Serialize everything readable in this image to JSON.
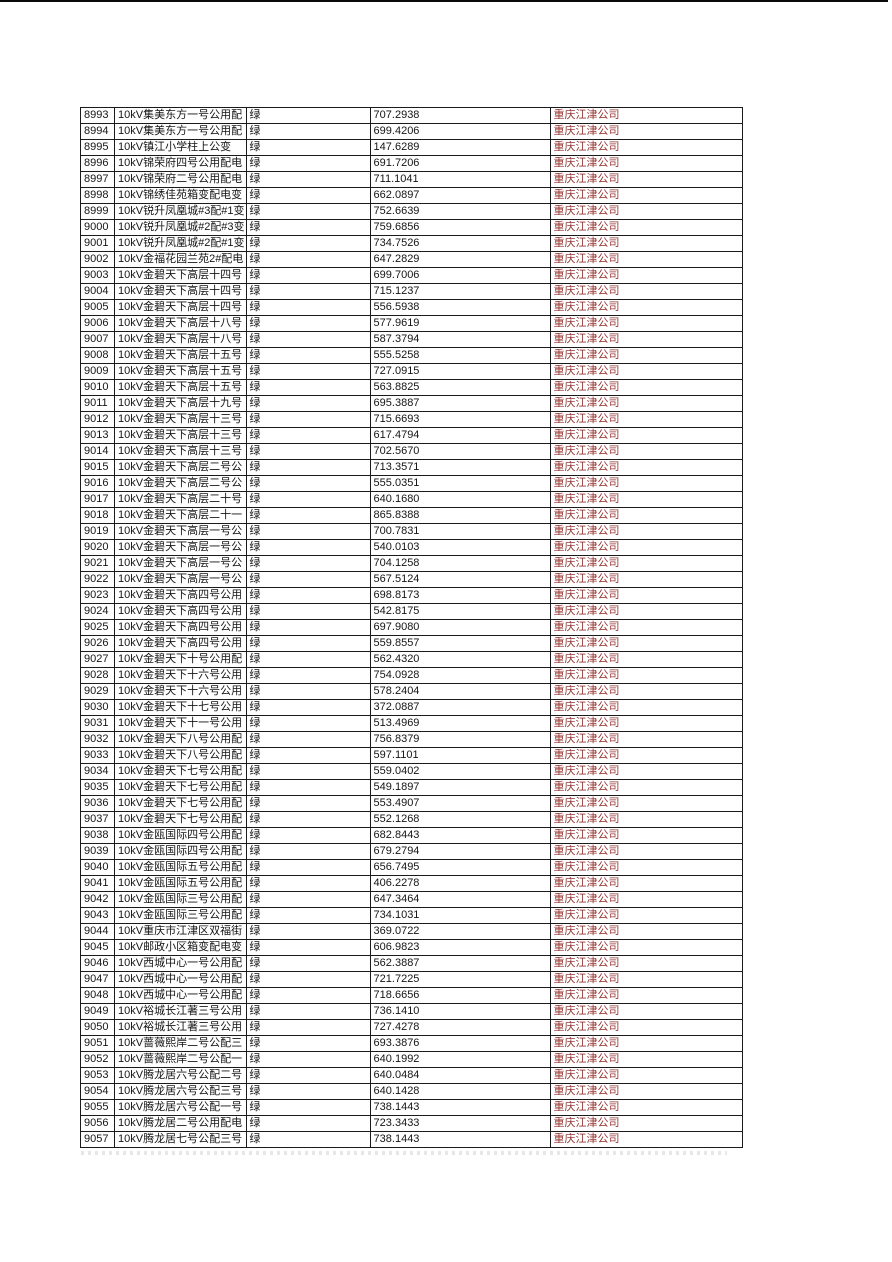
{
  "colors": {
    "company_text": "#963634",
    "default_text": "#151515",
    "grid_line": "#1a1a1a"
  },
  "table": {
    "columns": [
      "id",
      "name",
      "status",
      "value",
      "company"
    ],
    "rows": [
      {
        "id": "8993",
        "name": "10kV集美东方一号公用配",
        "status": "绿",
        "value": "707.2938",
        "company": "重庆江津公司"
      },
      {
        "id": "8994",
        "name": "10kV集美东方一号公用配",
        "status": "绿",
        "value": "699.4206",
        "company": "重庆江津公司"
      },
      {
        "id": "8995",
        "name": "10kV镇江小学柱上公变",
        "status": "绿",
        "value": "147.6289",
        "company": "重庆江津公司"
      },
      {
        "id": "8996",
        "name": "10kV锦荣府四号公用配电",
        "status": "绿",
        "value": "691.7206",
        "company": "重庆江津公司"
      },
      {
        "id": "8997",
        "name": "10kV锦荣府二号公用配电",
        "status": "绿",
        "value": "711.1041",
        "company": "重庆江津公司"
      },
      {
        "id": "8998",
        "name": "10kV锦绣佳苑箱变配电变",
        "status": "绿",
        "value": "662.0897",
        "company": "重庆江津公司"
      },
      {
        "id": "8999",
        "name": "10kV锐升凤凰城#3配#1变",
        "status": "绿",
        "value": "752.6639",
        "company": "重庆江津公司"
      },
      {
        "id": "9000",
        "name": "10kV锐升凤凰城#2配#3变",
        "status": "绿",
        "value": "759.6856",
        "company": "重庆江津公司"
      },
      {
        "id": "9001",
        "name": "10kV锐升凤凰城#2配#1变",
        "status": "绿",
        "value": "734.7526",
        "company": "重庆江津公司"
      },
      {
        "id": "9002",
        "name": "10kV金福花园兰苑2#配电",
        "status": "绿",
        "value": "647.2829",
        "company": "重庆江津公司"
      },
      {
        "id": "9003",
        "name": "10kV金碧天下高层十四号",
        "status": "绿",
        "value": "699.7006",
        "company": "重庆江津公司"
      },
      {
        "id": "9004",
        "name": "10kV金碧天下高层十四号",
        "status": "绿",
        "value": "715.1237",
        "company": "重庆江津公司"
      },
      {
        "id": "9005",
        "name": "10kV金碧天下高层十四号",
        "status": "绿",
        "value": "556.5938",
        "company": "重庆江津公司"
      },
      {
        "id": "9006",
        "name": "10kV金碧天下高层十八号",
        "status": "绿",
        "value": "577.9619",
        "company": "重庆江津公司"
      },
      {
        "id": "9007",
        "name": "10kV金碧天下高层十八号",
        "status": "绿",
        "value": "587.3794",
        "company": "重庆江津公司"
      },
      {
        "id": "9008",
        "name": "10kV金碧天下高层十五号",
        "status": "绿",
        "value": "555.5258",
        "company": "重庆江津公司"
      },
      {
        "id": "9009",
        "name": "10kV金碧天下高层十五号",
        "status": "绿",
        "value": "727.0915",
        "company": "重庆江津公司"
      },
      {
        "id": "9010",
        "name": "10kV金碧天下高层十五号",
        "status": "绿",
        "value": "563.8825",
        "company": "重庆江津公司"
      },
      {
        "id": "9011",
        "name": "10kV金碧天下高层十九号",
        "status": "绿",
        "value": "695.3887",
        "company": "重庆江津公司"
      },
      {
        "id": "9012",
        "name": "10kV金碧天下高层十三号",
        "status": "绿",
        "value": "715.6693",
        "company": "重庆江津公司"
      },
      {
        "id": "9013",
        "name": "10kV金碧天下高层十三号",
        "status": "绿",
        "value": "617.4794",
        "company": "重庆江津公司"
      },
      {
        "id": "9014",
        "name": "10kV金碧天下高层十三号",
        "status": "绿",
        "value": "702.5670",
        "company": "重庆江津公司"
      },
      {
        "id": "9015",
        "name": "10kV金碧天下高层二号公",
        "status": "绿",
        "value": "713.3571",
        "company": "重庆江津公司"
      },
      {
        "id": "9016",
        "name": "10kV金碧天下高层二号公",
        "status": "绿",
        "value": "555.0351",
        "company": "重庆江津公司"
      },
      {
        "id": "9017",
        "name": "10kV金碧天下高层二十号",
        "status": "绿",
        "value": "640.1680",
        "company": "重庆江津公司"
      },
      {
        "id": "9018",
        "name": "10kV金碧天下高层二十一",
        "status": "绿",
        "value": "865.8388",
        "company": "重庆江津公司"
      },
      {
        "id": "9019",
        "name": "10kV金碧天下高层一号公",
        "status": "绿",
        "value": "700.7831",
        "company": "重庆江津公司"
      },
      {
        "id": "9020",
        "name": "10kV金碧天下高层一号公",
        "status": "绿",
        "value": "540.0103",
        "company": "重庆江津公司"
      },
      {
        "id": "9021",
        "name": "10kV金碧天下高层一号公",
        "status": "绿",
        "value": "704.1258",
        "company": "重庆江津公司"
      },
      {
        "id": "9022",
        "name": "10kV金碧天下高层一号公",
        "status": "绿",
        "value": "567.5124",
        "company": "重庆江津公司"
      },
      {
        "id": "9023",
        "name": "10kV金碧天下高四号公用",
        "status": "绿",
        "value": "698.8173",
        "company": "重庆江津公司"
      },
      {
        "id": "9024",
        "name": "10kV金碧天下高四号公用",
        "status": "绿",
        "value": "542.8175",
        "company": "重庆江津公司"
      },
      {
        "id": "9025",
        "name": "10kV金碧天下高四号公用",
        "status": "绿",
        "value": "697.9080",
        "company": "重庆江津公司"
      },
      {
        "id": "9026",
        "name": "10kV金碧天下高四号公用",
        "status": "绿",
        "value": "559.8557",
        "company": "重庆江津公司"
      },
      {
        "id": "9027",
        "name": "10kV金碧天下十号公用配",
        "status": "绿",
        "value": "562.4320",
        "company": "重庆江津公司"
      },
      {
        "id": "9028",
        "name": "10kV金碧天下十六号公用",
        "status": "绿",
        "value": "754.0928",
        "company": "重庆江津公司"
      },
      {
        "id": "9029",
        "name": "10kV金碧天下十六号公用",
        "status": "绿",
        "value": "578.2404",
        "company": "重庆江津公司"
      },
      {
        "id": "9030",
        "name": "10kV金碧天下十七号公用",
        "status": "绿",
        "value": "372.0887",
        "company": "重庆江津公司"
      },
      {
        "id": "9031",
        "name": "10kV金碧天下十一号公用",
        "status": "绿",
        "value": "513.4969",
        "company": "重庆江津公司"
      },
      {
        "id": "9032",
        "name": "10kV金碧天下八号公用配",
        "status": "绿",
        "value": "756.8379",
        "company": "重庆江津公司"
      },
      {
        "id": "9033",
        "name": "10kV金碧天下八号公用配",
        "status": "绿",
        "value": "597.1101",
        "company": "重庆江津公司"
      },
      {
        "id": "9034",
        "name": "10kV金碧天下七号公用配",
        "status": "绿",
        "value": "559.0402",
        "company": "重庆江津公司"
      },
      {
        "id": "9035",
        "name": "10kV金碧天下七号公用配",
        "status": "绿",
        "value": "549.1897",
        "company": "重庆江津公司"
      },
      {
        "id": "9036",
        "name": "10kV金碧天下七号公用配",
        "status": "绿",
        "value": "553.4907",
        "company": "重庆江津公司"
      },
      {
        "id": "9037",
        "name": "10kV金碧天下七号公用配",
        "status": "绿",
        "value": "552.1268",
        "company": "重庆江津公司"
      },
      {
        "id": "9038",
        "name": "10kV金瓯国际四号公用配",
        "status": "绿",
        "value": "682.8443",
        "company": "重庆江津公司"
      },
      {
        "id": "9039",
        "name": "10kV金瓯国际四号公用配",
        "status": "绿",
        "value": "679.2794",
        "company": "重庆江津公司"
      },
      {
        "id": "9040",
        "name": "10kV金瓯国际五号公用配",
        "status": "绿",
        "value": "656.7495",
        "company": "重庆江津公司"
      },
      {
        "id": "9041",
        "name": "10kV金瓯国际五号公用配",
        "status": "绿",
        "value": "406.2278",
        "company": "重庆江津公司"
      },
      {
        "id": "9042",
        "name": "10kV金瓯国际三号公用配",
        "status": "绿",
        "value": "647.3464",
        "company": "重庆江津公司"
      },
      {
        "id": "9043",
        "name": "10kV金瓯国际三号公用配",
        "status": "绿",
        "value": "734.1031",
        "company": "重庆江津公司"
      },
      {
        "id": "9044",
        "name": "10kV重庆市江津区双福街",
        "status": "绿",
        "value": "369.0722",
        "company": "重庆江津公司"
      },
      {
        "id": "9045",
        "name": "10kV邮政小区箱变配电变",
        "status": "绿",
        "value": "606.9823",
        "company": "重庆江津公司"
      },
      {
        "id": "9046",
        "name": "10kV西城中心一号公用配",
        "status": "绿",
        "value": "562.3887",
        "company": "重庆江津公司"
      },
      {
        "id": "9047",
        "name": "10kV西城中心一号公用配",
        "status": "绿",
        "value": "721.7225",
        "company": "重庆江津公司"
      },
      {
        "id": "9048",
        "name": "10kV西城中心一号公用配",
        "status": "绿",
        "value": "718.6656",
        "company": "重庆江津公司"
      },
      {
        "id": "9049",
        "name": "10kV裕城长江著三号公用",
        "status": "绿",
        "value": "736.1410",
        "company": "重庆江津公司"
      },
      {
        "id": "9050",
        "name": "10kV裕城长江著三号公用",
        "status": "绿",
        "value": "727.4278",
        "company": "重庆江津公司"
      },
      {
        "id": "9051",
        "name": "10kV蔷薇熙岸二号公配三",
        "status": "绿",
        "value": "693.3876",
        "company": "重庆江津公司"
      },
      {
        "id": "9052",
        "name": "10kV蔷薇熙岸二号公配一",
        "status": "绿",
        "value": "640.1992",
        "company": "重庆江津公司"
      },
      {
        "id": "9053",
        "name": "10kV腾龙居六号公配二号",
        "status": "绿",
        "value": "640.0484",
        "company": "重庆江津公司"
      },
      {
        "id": "9054",
        "name": "10kV腾龙居六号公配三号",
        "status": "绿",
        "value": "640.1428",
        "company": "重庆江津公司"
      },
      {
        "id": "9055",
        "name": "10kV腾龙居六号公配一号",
        "status": "绿",
        "value": "738.1443",
        "company": "重庆江津公司"
      },
      {
        "id": "9056",
        "name": "10kV腾龙居二号公用配电",
        "status": "绿",
        "value": "723.3433",
        "company": "重庆江津公司"
      },
      {
        "id": "9057",
        "name": "10kV腾龙居七号公配三号",
        "status": "绿",
        "value": "738.1443",
        "company": "重庆江津公司"
      }
    ]
  }
}
